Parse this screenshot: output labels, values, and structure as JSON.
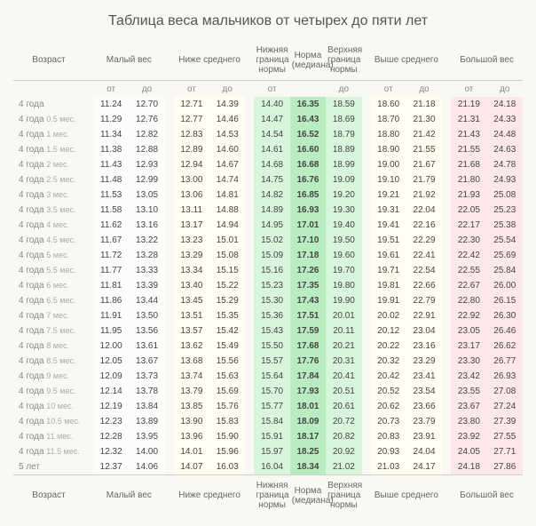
{
  "title": "Таблица веса мальчиков от четырех до пяти лет",
  "headers": {
    "age": "Возраст",
    "low": "Малый вес",
    "below": "Ниже среднего",
    "lownorm": "Нижняя\nграница\nнормы",
    "median": "Норма\n(медиана)",
    "highnorm": "Верхняя\nграница\nнормы",
    "above": "Выше среднего",
    "high": "Большой вес",
    "from": "от",
    "to": "до"
  },
  "rows": [
    {
      "a": "4 года",
      "m": "",
      "l1": "11.24",
      "l2": "12.70",
      "b1": "12.71",
      "b2": "14.39",
      "ln": "14.40",
      "md": "16.35",
      "hn": "18.59",
      "a1": "18.60",
      "a2": "21.18",
      "h1": "21.19",
      "h2": "24.18"
    },
    {
      "a": "4 года",
      "m": "0.5 мес.",
      "l1": "11.29",
      "l2": "12.76",
      "b1": "12.77",
      "b2": "14.46",
      "ln": "14.47",
      "md": "16.43",
      "hn": "18.69",
      "a1": "18.70",
      "a2": "21.30",
      "h1": "21.31",
      "h2": "24.33"
    },
    {
      "a": "4 года",
      "m": "1 мес.",
      "l1": "11.34",
      "l2": "12.82",
      "b1": "12.83",
      "b2": "14.53",
      "ln": "14.54",
      "md": "16.52",
      "hn": "18.79",
      "a1": "18.80",
      "a2": "21.42",
      "h1": "21.43",
      "h2": "24.48"
    },
    {
      "a": "4 года",
      "m": "1.5 мес.",
      "l1": "11.38",
      "l2": "12.88",
      "b1": "12.89",
      "b2": "14.60",
      "ln": "14.61",
      "md": "16.60",
      "hn": "18.89",
      "a1": "18.90",
      "a2": "21.55",
      "h1": "21.55",
      "h2": "24.63"
    },
    {
      "a": "4 года",
      "m": "2 мес.",
      "l1": "11.43",
      "l2": "12.93",
      "b1": "12.94",
      "b2": "14.67",
      "ln": "14.68",
      "md": "16.68",
      "hn": "18.99",
      "a1": "19.00",
      "a2": "21.67",
      "h1": "21.68",
      "h2": "24.78"
    },
    {
      "a": "4 года",
      "m": "2.5 мес.",
      "l1": "11.48",
      "l2": "12.99",
      "b1": "13.00",
      "b2": "14.74",
      "ln": "14.75",
      "md": "16.76",
      "hn": "19.09",
      "a1": "19.10",
      "a2": "21.79",
      "h1": "21.80",
      "h2": "24.93"
    },
    {
      "a": "4 года",
      "m": "3 мес.",
      "l1": "11.53",
      "l2": "13.05",
      "b1": "13.06",
      "b2": "14.81",
      "ln": "14.82",
      "md": "16.85",
      "hn": "19.20",
      "a1": "19.21",
      "a2": "21.92",
      "h1": "21.93",
      "h2": "25.08"
    },
    {
      "a": "4 года",
      "m": "3.5 мес.",
      "l1": "11.58",
      "l2": "13.10",
      "b1": "13.11",
      "b2": "14.88",
      "ln": "14.89",
      "md": "16.93",
      "hn": "19.30",
      "a1": "19.31",
      "a2": "22.04",
      "h1": "22.05",
      "h2": "25.23"
    },
    {
      "a": "4 года",
      "m": "4 мес.",
      "l1": "11.62",
      "l2": "13.16",
      "b1": "13.17",
      "b2": "14.94",
      "ln": "14.95",
      "md": "17.01",
      "hn": "19.40",
      "a1": "19.41",
      "a2": "22.16",
      "h1": "22.17",
      "h2": "25.38"
    },
    {
      "a": "4 года",
      "m": "4.5 мес.",
      "l1": "11.67",
      "l2": "13.22",
      "b1": "13.23",
      "b2": "15.01",
      "ln": "15.02",
      "md": "17.10",
      "hn": "19.50",
      "a1": "19.51",
      "a2": "22.29",
      "h1": "22.30",
      "h2": "25.54"
    },
    {
      "a": "4 года",
      "m": "5 мес.",
      "l1": "11.72",
      "l2": "13.28",
      "b1": "13.29",
      "b2": "15.08",
      "ln": "15.09",
      "md": "17.18",
      "hn": "19.60",
      "a1": "19.61",
      "a2": "22.41",
      "h1": "22.42",
      "h2": "25.69"
    },
    {
      "a": "4 года",
      "m": "5.5 мес.",
      "l1": "11.77",
      "l2": "13.33",
      "b1": "13.34",
      "b2": "15.15",
      "ln": "15.16",
      "md": "17.26",
      "hn": "19.70",
      "a1": "19.71",
      "a2": "22.54",
      "h1": "22.55",
      "h2": "25.84"
    },
    {
      "a": "4 года",
      "m": "6 мес.",
      "l1": "11.81",
      "l2": "13.39",
      "b1": "13.40",
      "b2": "15.22",
      "ln": "15.23",
      "md": "17.35",
      "hn": "19.80",
      "a1": "19.81",
      "a2": "22.66",
      "h1": "22.67",
      "h2": "26.00"
    },
    {
      "a": "4 года",
      "m": "6.5 мес.",
      "l1": "11.86",
      "l2": "13.44",
      "b1": "13.45",
      "b2": "15.29",
      "ln": "15.30",
      "md": "17.43",
      "hn": "19.90",
      "a1": "19.91",
      "a2": "22.79",
      "h1": "22.80",
      "h2": "26.15"
    },
    {
      "a": "4 года",
      "m": "7 мес.",
      "l1": "11.91",
      "l2": "13.50",
      "b1": "13.51",
      "b2": "15.35",
      "ln": "15.36",
      "md": "17.51",
      "hn": "20.01",
      "a1": "20.02",
      "a2": "22.91",
      "h1": "22.92",
      "h2": "26.30"
    },
    {
      "a": "4 года",
      "m": "7.5 мес.",
      "l1": "11.95",
      "l2": "13.56",
      "b1": "13.57",
      "b2": "15.42",
      "ln": "15.43",
      "md": "17.59",
      "hn": "20.11",
      "a1": "20.12",
      "a2": "23.04",
      "h1": "23.05",
      "h2": "26.46"
    },
    {
      "a": "4 года",
      "m": "8 мес.",
      "l1": "12.00",
      "l2": "13.61",
      "b1": "13.62",
      "b2": "15.49",
      "ln": "15.50",
      "md": "17.68",
      "hn": "20.21",
      "a1": "20.22",
      "a2": "23.16",
      "h1": "23.17",
      "h2": "26.62"
    },
    {
      "a": "4 года",
      "m": "8.5 мес.",
      "l1": "12.05",
      "l2": "13.67",
      "b1": "13.68",
      "b2": "15.56",
      "ln": "15.57",
      "md": "17.76",
      "hn": "20.31",
      "a1": "20.32",
      "a2": "23.29",
      "h1": "23.30",
      "h2": "26.77"
    },
    {
      "a": "4 года",
      "m": "9 мес.",
      "l1": "12.09",
      "l2": "13.73",
      "b1": "13.74",
      "b2": "15.63",
      "ln": "15.64",
      "md": "17.84",
      "hn": "20.41",
      "a1": "20.42",
      "a2": "23.41",
      "h1": "23.42",
      "h2": "26.93"
    },
    {
      "a": "4 года",
      "m": "9.5 мес.",
      "l1": "12.14",
      "l2": "13.78",
      "b1": "13.79",
      "b2": "15.69",
      "ln": "15.70",
      "md": "17.93",
      "hn": "20.51",
      "a1": "20.52",
      "a2": "23.54",
      "h1": "23.55",
      "h2": "27.08"
    },
    {
      "a": "4 года",
      "m": "10 мес.",
      "l1": "12.19",
      "l2": "13.84",
      "b1": "13.85",
      "b2": "15.76",
      "ln": "15.77",
      "md": "18.01",
      "hn": "20.61",
      "a1": "20.62",
      "a2": "23.66",
      "h1": "23.67",
      "h2": "27.24"
    },
    {
      "a": "4 года",
      "m": "10.5 мес.",
      "l1": "12.23",
      "l2": "13.89",
      "b1": "13.90",
      "b2": "15.83",
      "ln": "15.84",
      "md": "18.09",
      "hn": "20.72",
      "a1": "20.73",
      "a2": "23.79",
      "h1": "23.80",
      "h2": "27.39"
    },
    {
      "a": "4 года",
      "m": "11 мес.",
      "l1": "12.28",
      "l2": "13.95",
      "b1": "13.96",
      "b2": "15.90",
      "ln": "15.91",
      "md": "18.17",
      "hn": "20.82",
      "a1": "20.83",
      "a2": "23.91",
      "h1": "23.92",
      "h2": "27.55"
    },
    {
      "a": "4 года",
      "m": "11.5 мес.",
      "l1": "12.32",
      "l2": "14.00",
      "b1": "14.01",
      "b2": "15.96",
      "ln": "15.97",
      "md": "18.25",
      "hn": "20.92",
      "a1": "20.93",
      "a2": "24.04",
      "h1": "24.05",
      "h2": "27.71"
    },
    {
      "a": "5 лет",
      "m": "",
      "l1": "12.37",
      "l2": "14.06",
      "b1": "14.07",
      "b2": "16.03",
      "ln": "16.04",
      "md": "18.34",
      "hn": "21.02",
      "a1": "21.03",
      "a2": "24.17",
      "h1": "24.18",
      "h2": "27.86"
    }
  ]
}
